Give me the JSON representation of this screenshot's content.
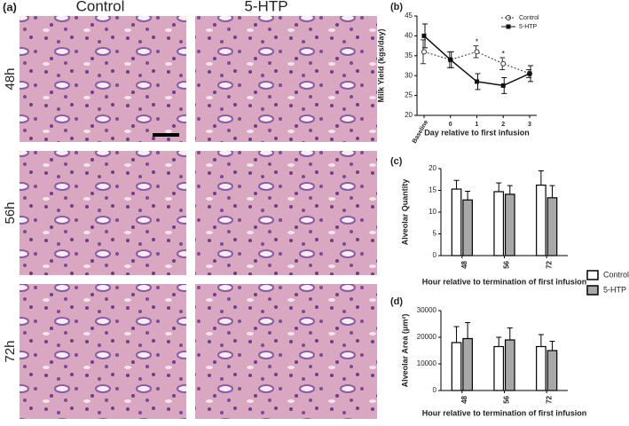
{
  "panel_a": {
    "label": "(a)",
    "columns": [
      "Control",
      "5-HTP"
    ],
    "rows": [
      "48h",
      "56h",
      "72h"
    ]
  },
  "chart_data": [
    {
      "type": "line",
      "panel_label": "(b)",
      "ylabel": "Milk Yield (kgs/day)",
      "xlabel": "Day relative to first infusion",
      "categories": [
        "Baseline",
        "0",
        "1",
        "2",
        "3"
      ],
      "ylim": [
        20,
        45
      ],
      "yticks": [
        20,
        25,
        30,
        35,
        40,
        45
      ],
      "legend": "top-right",
      "series": [
        {
          "name": "Control",
          "color": "#333333",
          "marker": "circle",
          "dash": true,
          "values": [
            36,
            34,
            36,
            33,
            30.5
          ],
          "errors": [
            3,
            2,
            1.5,
            1.5,
            1
          ]
        },
        {
          "name": "5-HTP",
          "color": "#111111",
          "marker": "square",
          "dash": false,
          "values": [
            40,
            34,
            28.5,
            27.5,
            30.5
          ],
          "errors": [
            3,
            2,
            2,
            2,
            2
          ]
        }
      ],
      "annotations": [
        {
          "text": "*",
          "category": "1"
        },
        {
          "text": "*",
          "category": "2"
        }
      ]
    },
    {
      "type": "bar",
      "panel_label": "(c)",
      "ylabel": "Alveolar Quantity",
      "xlabel": "Hour relative to termination of first infusion",
      "categories": [
        "48",
        "56",
        "72"
      ],
      "ylim": [
        0,
        20
      ],
      "yticks": [
        0,
        5,
        10,
        15,
        20
      ],
      "legend": "right",
      "series": [
        {
          "name": "Control",
          "color": "#ffffff",
          "values": [
            15.3,
            14.7,
            16.2
          ],
          "errors": [
            2,
            2,
            3.3
          ]
        },
        {
          "name": "5-HTP",
          "color": "#a8a8a8",
          "values": [
            12.8,
            14.1,
            13.3
          ],
          "errors": [
            2,
            2,
            2.8
          ]
        }
      ]
    },
    {
      "type": "bar",
      "panel_label": "(d)",
      "ylabel": "Alveolar Area (μm²)",
      "xlabel": "Hour relative to termination of first infusion",
      "categories": [
        "48",
        "56",
        "72"
      ],
      "ylim": [
        0,
        30000
      ],
      "yticks": [
        0,
        10000,
        20000,
        30000
      ],
      "series": [
        {
          "color": "#ffffff",
          "values": [
            18000,
            16500,
            16500
          ],
          "errors": [
            6000,
            3500,
            4500
          ]
        },
        {
          "color": "#a8a8a8",
          "values": [
            19500,
            19000,
            15000
          ],
          "errors": [
            6000,
            4500,
            3500
          ]
        }
      ]
    }
  ]
}
